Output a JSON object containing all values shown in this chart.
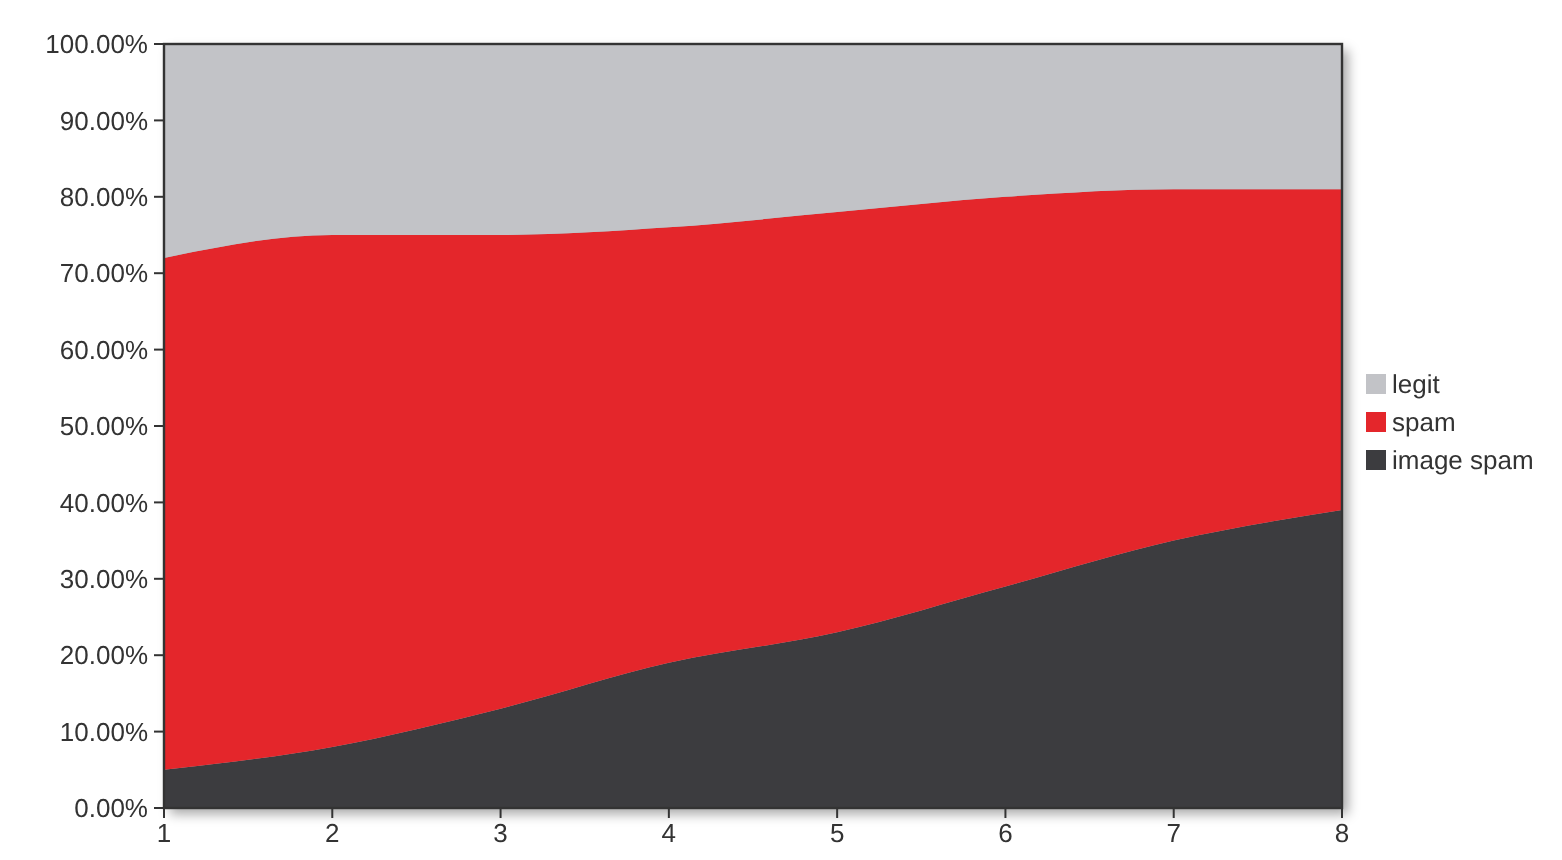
{
  "chart_data": {
    "type": "area",
    "stacked": true,
    "x": [
      1,
      2,
      3,
      4,
      5,
      6,
      7,
      8
    ],
    "xlim": [
      1,
      8
    ],
    "xticks": [
      1,
      2,
      3,
      4,
      5,
      6,
      7,
      8
    ],
    "ylim": [
      0,
      100
    ],
    "yticks": [
      {
        "value": 0,
        "label": "0.00%"
      },
      {
        "value": 10,
        "label": "10.00%"
      },
      {
        "value": 20,
        "label": "20.00%"
      },
      {
        "value": 30,
        "label": "30.00%"
      },
      {
        "value": 40,
        "label": "40.00%"
      },
      {
        "value": 50,
        "label": "50.00%"
      },
      {
        "value": 60,
        "label": "60.00%"
      },
      {
        "value": 70,
        "label": "70.00%"
      },
      {
        "value": 80,
        "label": "80.00%"
      },
      {
        "value": 90,
        "label": "90.00%"
      },
      {
        "value": 100,
        "label": "100.00%"
      }
    ],
    "legend": "right",
    "series": [
      {
        "name": "image spam",
        "color": "#3c3c3f",
        "values": [
          5,
          8,
          13,
          19,
          23,
          29,
          35,
          39
        ]
      },
      {
        "name": "spam",
        "color": "#e4262b",
        "values": [
          67,
          67,
          62,
          57,
          55,
          51,
          46,
          42
        ]
      },
      {
        "name": "legit",
        "color": "#c2c3c7",
        "values": [
          28,
          25,
          25,
          24,
          22,
          20,
          19,
          19
        ]
      }
    ]
  }
}
